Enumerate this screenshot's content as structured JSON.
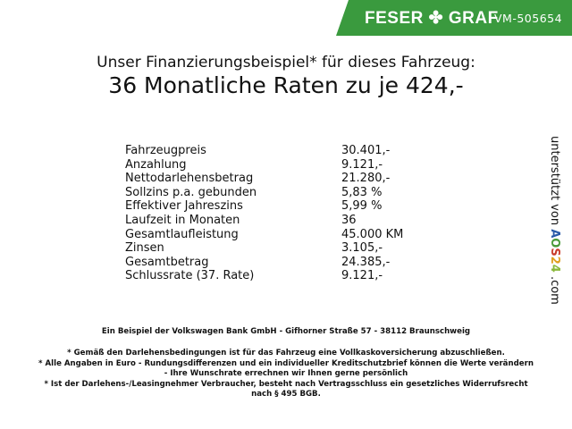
{
  "header": {
    "brand": "FESER",
    "brand2": "GRAF",
    "vehicle_id": "VM-505654",
    "colors": {
      "banner": "#3a9a3e"
    }
  },
  "title": {
    "line1": "Unser Finanzierungsbeispiel* für dieses Fahrzeug:",
    "line2": "36 Monatliche Raten zu je 424,-"
  },
  "rows": [
    {
      "label": "Fahrzeugpreis",
      "value": "30.401,-"
    },
    {
      "label": "Anzahlung",
      "value": "9.121,-"
    },
    {
      "label": "Nettodarlehensbetrag",
      "value": "21.280,-"
    },
    {
      "label": "Sollzins p.a. gebunden",
      "value": "5,83 %"
    },
    {
      "label": "Effektiver Jahreszins",
      "value": "5,99 %"
    },
    {
      "label": "Laufzeit in Monaten",
      "value": "36"
    },
    {
      "label": "Gesamtlaufleistung",
      "value": "45.000 KM"
    },
    {
      "label": "Zinsen",
      "value": "3.105,-"
    },
    {
      "label": "Gesamtbetrag",
      "value": "24.385,-"
    },
    {
      "label": "Schlussrate (37. Rate)",
      "value": "9.121,-"
    }
  ],
  "side": {
    "text": "unterstützt von",
    "logo": "AOS24",
    "suffix": ".com"
  },
  "footer": {
    "bank": "Ein Beispiel der Volkswagen Bank GmbH - Gifhorner Straße 57 - 38112 Braunschweig",
    "note1": "* Gemäß den Darlehensbedingungen ist für das Fahrzeug eine Vollkaskoversicherung abzuschließen.",
    "note2a": "* Alle Angaben in Euro - Rundungsdifferenzen und ein individueller Kreditschutzbrief können die Werte verändern",
    "note2b": "- Ihre Wunschrate errechnen wir Ihnen gerne persönlich",
    "note3a": "* Ist der Darlehens-/Leasingnehmer Verbraucher, besteht nach Vertragsschluss ein gesetzliches Widerrufsrecht",
    "note3b": "nach § 495 BGB."
  }
}
